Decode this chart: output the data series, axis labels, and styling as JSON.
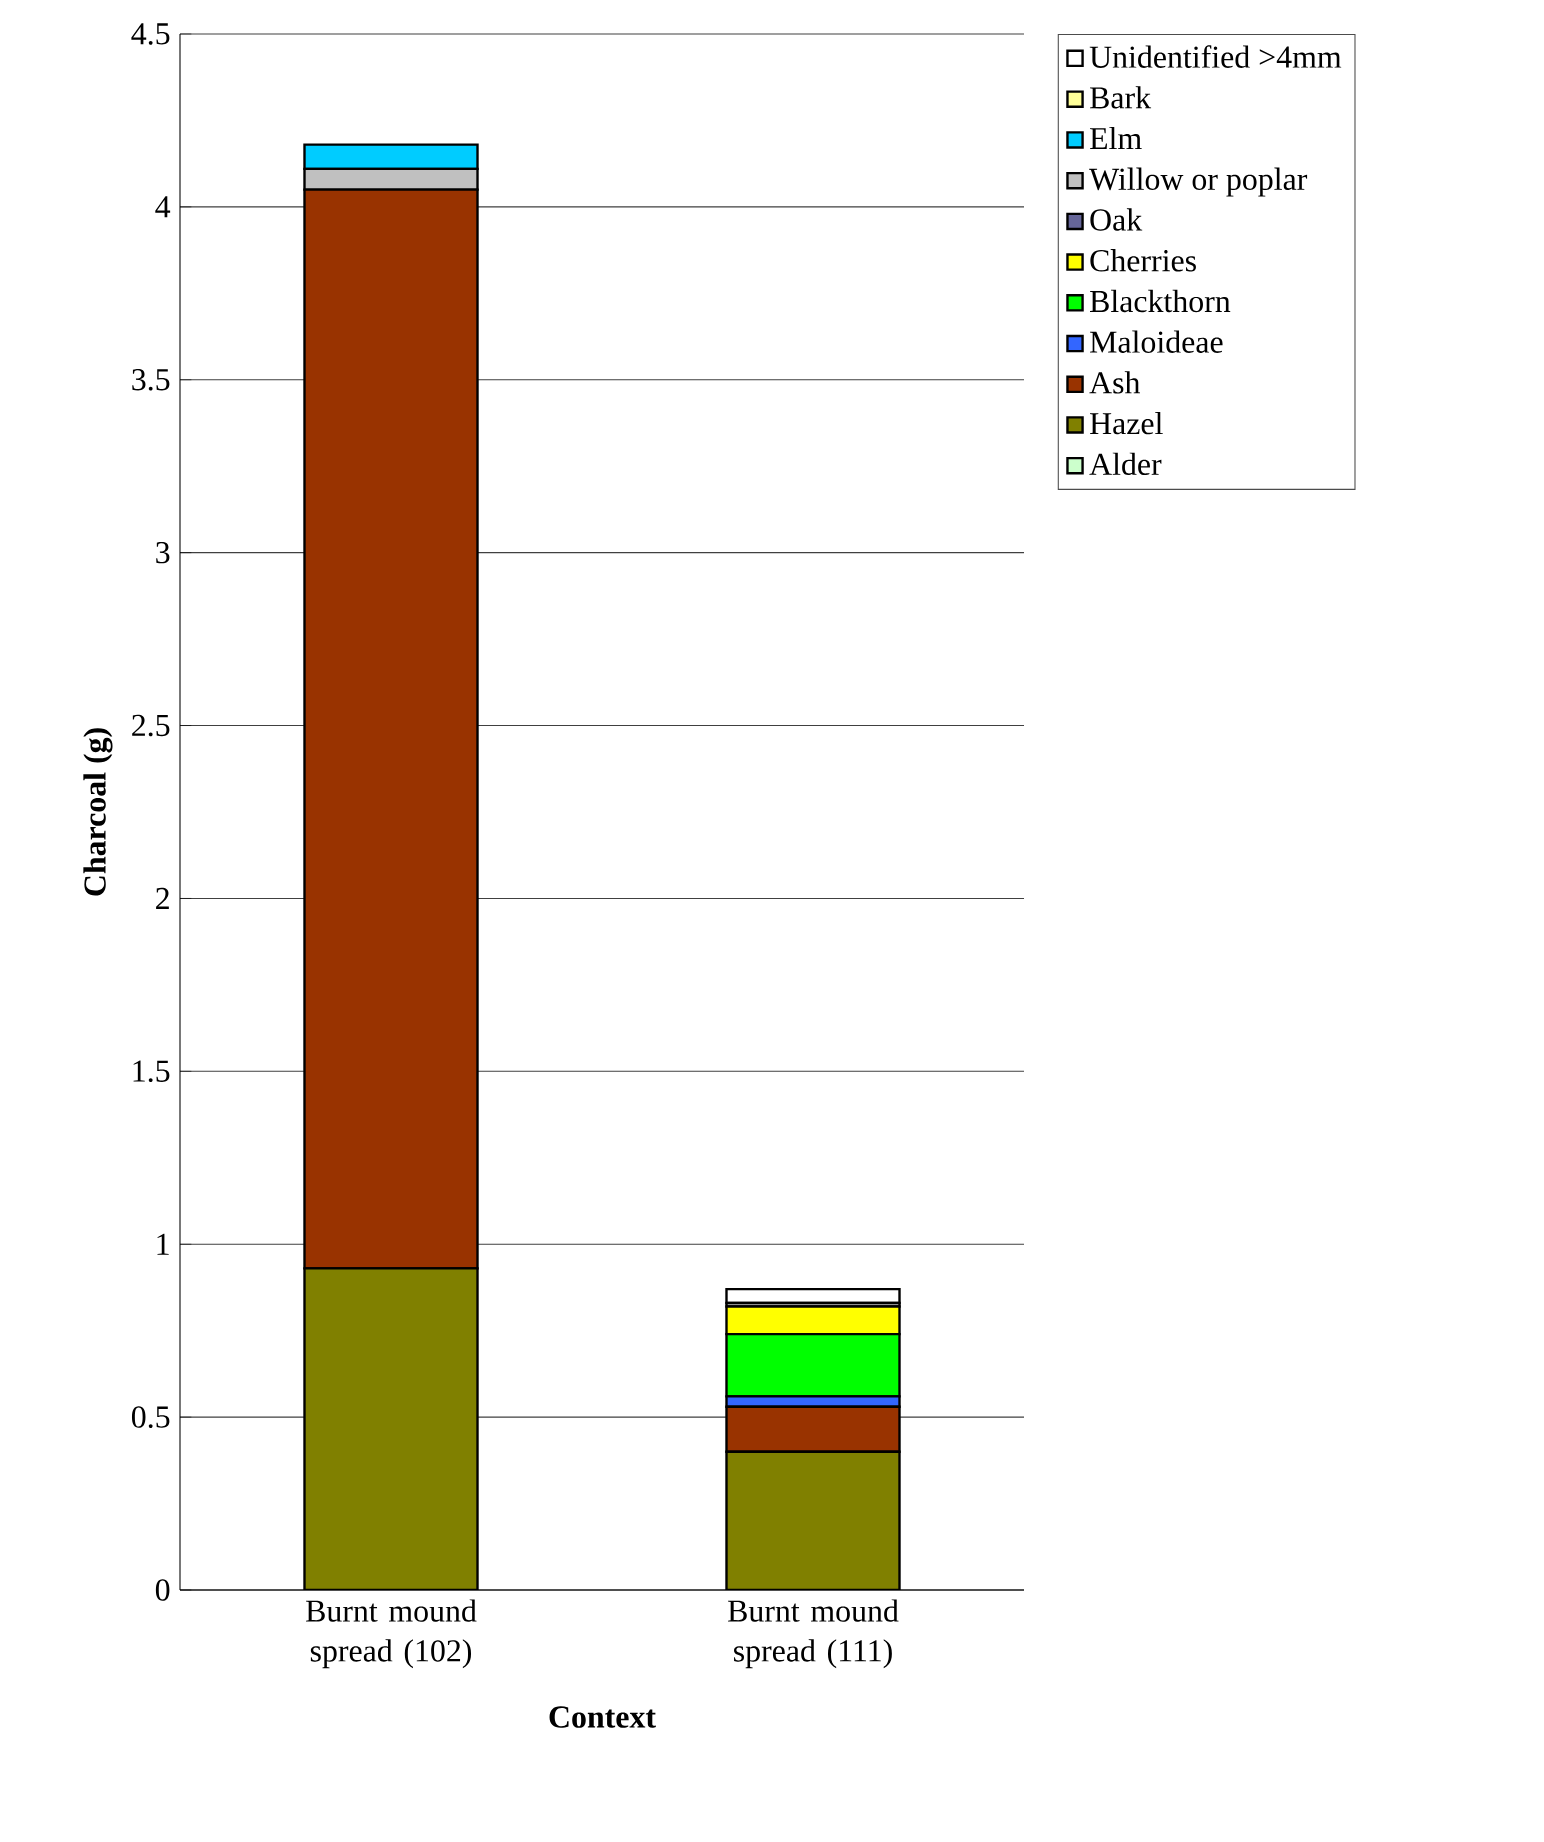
{
  "chart_data": {
    "type": "bar",
    "stacked": true,
    "xlabel": "Context",
    "ylabel": "Charcoal (g)",
    "categories": [
      "Burnt mound spread (102)",
      "Burnt mound spread (111)"
    ],
    "ylim": [
      0,
      4.5
    ],
    "yticks": [
      0,
      0.5,
      1,
      1.5,
      2,
      2.5,
      3,
      3.5,
      4,
      4.5
    ],
    "grid": "y",
    "legend": "top right",
    "series": [
      {
        "name": "Alder",
        "color": "#ccffcc",
        "values": [
          0,
          0
        ]
      },
      {
        "name": "Hazel",
        "color": "#808000",
        "values": [
          0.93,
          0.4
        ]
      },
      {
        "name": "Ash",
        "color": "#993300",
        "values": [
          3.12,
          0.13
        ]
      },
      {
        "name": "Maloideae",
        "color": "#3366ff",
        "values": [
          0,
          0.03
        ]
      },
      {
        "name": "Blackthorn",
        "color": "#00ff00",
        "values": [
          0,
          0.18
        ]
      },
      {
        "name": "Cherries",
        "color": "#ffff00",
        "values": [
          0,
          0.08
        ]
      },
      {
        "name": "Oak",
        "color": "#666699",
        "values": [
          0,
          0
        ]
      },
      {
        "name": "Willow or poplar",
        "color": "#c0c0c0",
        "values": [
          0.06,
          0.01
        ]
      },
      {
        "name": "Elm",
        "color": "#00ccff",
        "values": [
          0.07,
          0
        ]
      },
      {
        "name": "Bark",
        "color": "#ffff99",
        "values": [
          0,
          0
        ]
      },
      {
        "name": "Unidentified >4mm",
        "color": "#ffffff",
        "values": [
          0,
          0.04
        ]
      }
    ]
  }
}
